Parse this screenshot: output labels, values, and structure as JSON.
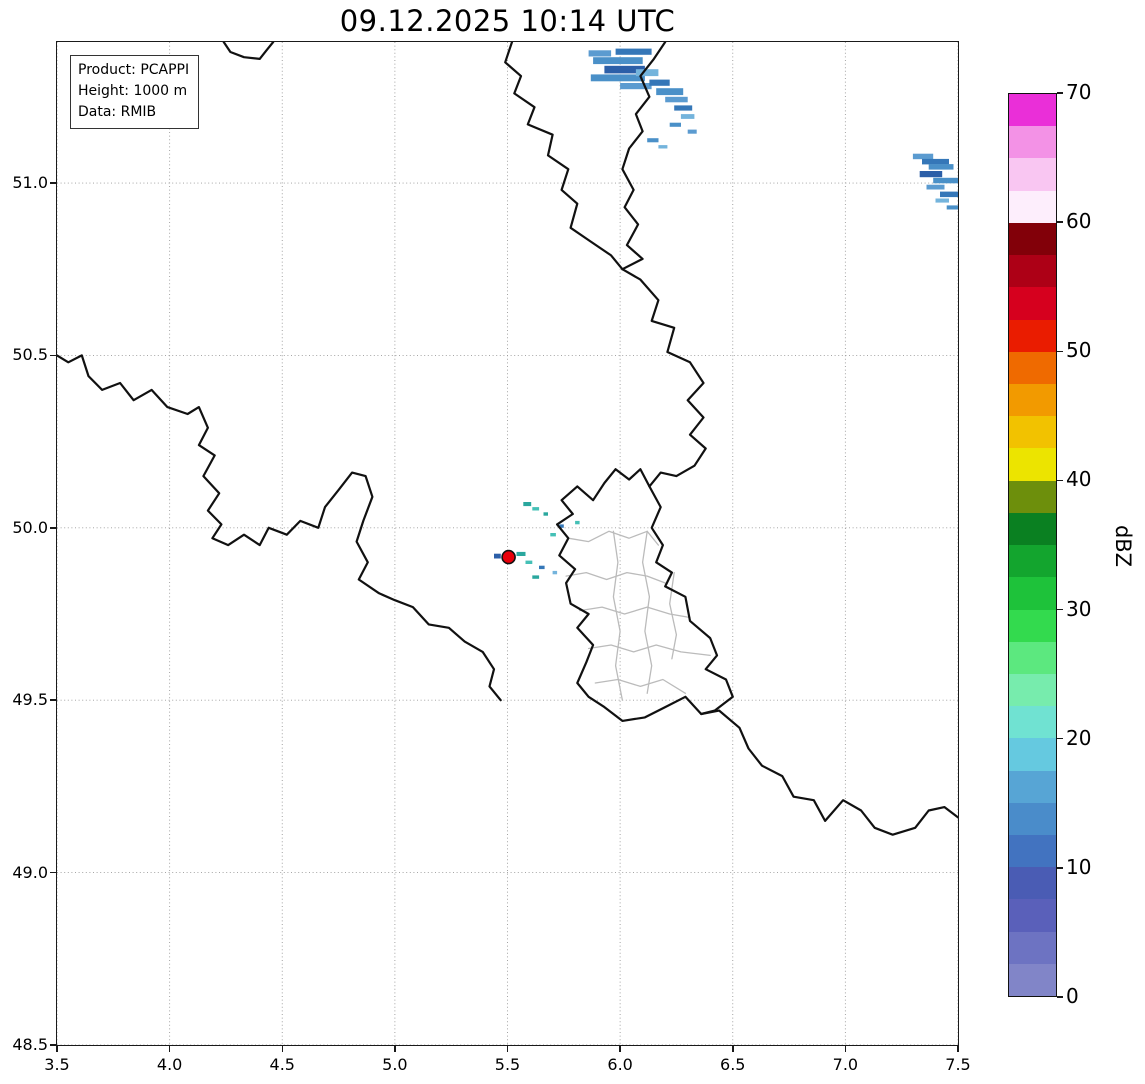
{
  "title": "09.12.2025 10:14 UTC",
  "info_box": {
    "lines": [
      "Product: PCAPPI",
      "Height: 1000 m",
      "Data: RMIB"
    ]
  },
  "axes": {
    "x_range": [
      3.5,
      7.5
    ],
    "y_range": [
      48.5,
      51.409
    ],
    "x_ticks": [
      "3.5",
      "4.0",
      "4.5",
      "5.0",
      "5.5",
      "6.0",
      "6.5",
      "7.0",
      "7.5"
    ],
    "y_ticks": [
      "48.5",
      "49.0",
      "49.5",
      "50.0",
      "50.5",
      "51.0"
    ],
    "grid_color": "#9a9a9a"
  },
  "colorbar": {
    "label": "dBZ",
    "min": 0,
    "max": 70,
    "tick_values": [
      0,
      10,
      20,
      30,
      40,
      50,
      60,
      70
    ],
    "colors_bottom_to_top": [
      "#8185c8",
      "#6d73c2",
      "#5a60ba",
      "#4a5cb4",
      "#4273c0",
      "#4a8cca",
      "#57a5d5",
      "#65c9e0",
      "#70e2d2",
      "#77ecad",
      "#5ce87f",
      "#33da4e",
      "#1ec23a",
      "#13a52e",
      "#0a8021",
      "#6d8f0c",
      "#ece400",
      "#f2c200",
      "#f29a00",
      "#ef6a00",
      "#ea1c00",
      "#d6001e",
      "#ad0016",
      "#820009",
      "#fdeefc",
      "#f9c6f2",
      "#f392e6",
      "#ea2fd8"
    ]
  },
  "radar_site": {
    "lon": 5.505,
    "lat": 49.915,
    "fill": "#e8000a",
    "edge": "#111111"
  },
  "map": {
    "border_color": "#111111",
    "region_border_color": "#bbbbbb",
    "national_borders": [
      [
        [
          4.24,
          51.409
        ],
        [
          4.27,
          51.38
        ],
        [
          4.33,
          51.365
        ],
        [
          4.4,
          51.36
        ],
        [
          4.43,
          51.385
        ],
        [
          4.46,
          51.409
        ]
      ],
      [
        [
          5.52,
          51.409
        ],
        [
          5.49,
          51.35
        ],
        [
          5.56,
          51.31
        ],
        [
          5.53,
          51.26
        ],
        [
          5.62,
          51.22
        ],
        [
          5.59,
          51.17
        ],
        [
          5.7,
          51.14
        ],
        [
          5.68,
          51.08
        ],
        [
          5.77,
          51.04
        ],
        [
          5.74,
          50.98
        ],
        [
          5.81,
          50.94
        ],
        [
          5.78,
          50.87
        ],
        [
          5.87,
          50.83
        ],
        [
          5.96,
          50.79
        ],
        [
          6.01,
          50.75
        ]
      ],
      [
        [
          6.2,
          51.409
        ],
        [
          6.15,
          51.36
        ],
        [
          6.09,
          51.31
        ],
        [
          6.13,
          51.25
        ],
        [
          6.07,
          51.2
        ],
        [
          6.1,
          51.15
        ],
        [
          6.04,
          51.1
        ],
        [
          6.01,
          51.04
        ],
        [
          6.06,
          50.98
        ],
        [
          6.02,
          50.93
        ],
        [
          6.08,
          50.88
        ],
        [
          6.03,
          50.82
        ],
        [
          6.1,
          50.78
        ],
        [
          6.01,
          50.75
        ]
      ],
      [
        [
          6.01,
          50.75
        ],
        [
          6.09,
          50.72
        ],
        [
          6.17,
          50.66
        ],
        [
          6.14,
          50.6
        ],
        [
          6.24,
          50.58
        ],
        [
          6.21,
          50.51
        ],
        [
          6.31,
          50.48
        ],
        [
          6.37,
          50.42
        ],
        [
          6.3,
          50.37
        ],
        [
          6.37,
          50.32
        ],
        [
          6.31,
          50.27
        ],
        [
          6.38,
          50.23
        ],
        [
          6.33,
          50.18
        ],
        [
          6.25,
          50.15
        ],
        [
          6.18,
          50.16
        ],
        [
          6.13,
          50.12
        ]
      ],
      [
        [
          6.13,
          50.12
        ],
        [
          6.18,
          50.06
        ],
        [
          6.14,
          50.0
        ],
        [
          6.19,
          49.95
        ],
        [
          6.16,
          49.9
        ],
        [
          6.23,
          49.87
        ],
        [
          6.2,
          49.83
        ],
        [
          6.29,
          49.8
        ],
        [
          6.31,
          49.73
        ],
        [
          6.4,
          49.68
        ],
        [
          6.43,
          49.63
        ],
        [
          6.38,
          49.59
        ],
        [
          6.47,
          49.56
        ],
        [
          6.5,
          49.51
        ],
        [
          6.42,
          49.47
        ],
        [
          6.36,
          49.46
        ],
        [
          6.29,
          49.51
        ],
        [
          6.2,
          49.48
        ],
        [
          6.11,
          49.45
        ],
        [
          6.01,
          49.44
        ],
        [
          5.93,
          49.48
        ],
        [
          5.86,
          49.51
        ],
        [
          5.81,
          49.55
        ],
        [
          5.85,
          49.61
        ],
        [
          5.88,
          49.66
        ],
        [
          5.81,
          49.71
        ],
        [
          5.86,
          49.75
        ],
        [
          5.78,
          49.78
        ],
        [
          5.76,
          49.84
        ],
        [
          5.8,
          49.88
        ],
        [
          5.73,
          49.92
        ],
        [
          5.77,
          49.97
        ],
        [
          5.72,
          50.01
        ],
        [
          5.79,
          50.04
        ],
        [
          5.74,
          50.08
        ],
        [
          5.81,
          50.12
        ],
        [
          5.88,
          50.08
        ],
        [
          5.93,
          50.13
        ],
        [
          5.98,
          50.17
        ],
        [
          6.04,
          50.14
        ],
        [
          6.09,
          50.17
        ],
        [
          6.13,
          50.12
        ]
      ],
      [
        [
          3.5,
          50.5
        ],
        [
          3.55,
          50.48
        ],
        [
          3.61,
          50.5
        ],
        [
          3.64,
          50.44
        ],
        [
          3.7,
          50.4
        ],
        [
          3.78,
          50.42
        ],
        [
          3.84,
          50.37
        ],
        [
          3.92,
          50.4
        ],
        [
          3.99,
          50.35
        ],
        [
          4.08,
          50.33
        ],
        [
          4.13,
          50.35
        ],
        [
          4.17,
          50.29
        ],
        [
          4.13,
          50.24
        ],
        [
          4.2,
          50.21
        ],
        [
          4.15,
          50.15
        ],
        [
          4.22,
          50.1
        ],
        [
          4.17,
          50.05
        ],
        [
          4.23,
          50.01
        ],
        [
          4.19,
          49.97
        ],
        [
          4.26,
          49.95
        ],
        [
          4.33,
          49.98
        ],
        [
          4.4,
          49.95
        ],
        [
          4.44,
          50.0
        ],
        [
          4.52,
          49.98
        ],
        [
          4.58,
          50.02
        ],
        [
          4.66,
          50.0
        ],
        [
          4.69,
          50.06
        ],
        [
          4.75,
          50.11
        ],
        [
          4.81,
          50.16
        ],
        [
          4.87,
          50.15
        ],
        [
          4.9,
          50.09
        ],
        [
          4.86,
          50.02
        ],
        [
          4.83,
          49.96
        ],
        [
          4.88,
          49.9
        ],
        [
          4.84,
          49.85
        ],
        [
          4.93,
          49.81
        ],
        [
          5.0,
          49.79
        ],
        [
          5.08,
          49.77
        ],
        [
          5.15,
          49.72
        ],
        [
          5.24,
          49.71
        ],
        [
          5.31,
          49.67
        ],
        [
          5.39,
          49.64
        ],
        [
          5.44,
          49.59
        ],
        [
          5.42,
          49.54
        ],
        [
          5.47,
          49.5
        ]
      ],
      [
        [
          6.36,
          49.46
        ],
        [
          6.44,
          49.47
        ],
        [
          6.53,
          49.42
        ],
        [
          6.57,
          49.36
        ],
        [
          6.63,
          49.31
        ],
        [
          6.72,
          49.28
        ],
        [
          6.77,
          49.22
        ],
        [
          6.86,
          49.21
        ],
        [
          6.91,
          49.15
        ],
        [
          6.99,
          49.21
        ],
        [
          7.07,
          49.18
        ],
        [
          7.13,
          49.13
        ],
        [
          7.21,
          49.11
        ],
        [
          7.31,
          49.13
        ],
        [
          7.37,
          49.18
        ],
        [
          7.44,
          49.19
        ],
        [
          7.5,
          49.16
        ]
      ]
    ],
    "region_borders": [
      [
        [
          5.77,
          49.97
        ],
        [
          5.86,
          49.96
        ],
        [
          5.95,
          49.99
        ],
        [
          6.04,
          49.97
        ],
        [
          6.12,
          49.99
        ],
        [
          6.17,
          49.95
        ]
      ],
      [
        [
          5.76,
          49.86
        ],
        [
          5.85,
          49.87
        ],
        [
          5.94,
          49.85
        ],
        [
          6.03,
          49.87
        ],
        [
          6.12,
          49.86
        ],
        [
          6.2,
          49.84
        ]
      ],
      [
        [
          5.82,
          49.76
        ],
        [
          5.92,
          49.77
        ],
        [
          6.02,
          49.75
        ],
        [
          6.12,
          49.77
        ],
        [
          6.22,
          49.75
        ],
        [
          6.31,
          49.74
        ]
      ],
      [
        [
          5.86,
          49.65
        ],
        [
          5.96,
          49.66
        ],
        [
          6.06,
          49.64
        ],
        [
          6.16,
          49.66
        ],
        [
          6.27,
          49.64
        ],
        [
          6.4,
          49.63
        ]
      ],
      [
        [
          5.89,
          49.55
        ],
        [
          5.99,
          49.56
        ],
        [
          6.09,
          49.54
        ],
        [
          6.19,
          49.56
        ],
        [
          6.29,
          49.52
        ]
      ],
      [
        [
          5.97,
          49.99
        ],
        [
          5.99,
          49.9
        ],
        [
          5.97,
          49.8
        ],
        [
          6.0,
          49.7
        ],
        [
          5.98,
          49.6
        ],
        [
          6.01,
          49.5
        ]
      ],
      [
        [
          6.12,
          49.99
        ],
        [
          6.1,
          49.9
        ],
        [
          6.13,
          49.8
        ],
        [
          6.11,
          49.7
        ],
        [
          6.14,
          49.6
        ],
        [
          6.12,
          49.52
        ]
      ],
      [
        [
          6.24,
          49.87
        ],
        [
          6.22,
          49.78
        ],
        [
          6.25,
          49.69
        ],
        [
          6.23,
          49.62
        ]
      ]
    ]
  },
  "echoes": [
    {
      "lon": 5.86,
      "lat": 51.385,
      "w": 0.1,
      "h": 0.018,
      "color": "#5b9bd0"
    },
    {
      "lon": 5.98,
      "lat": 51.39,
      "w": 0.16,
      "h": 0.018,
      "color": "#3577b8"
    },
    {
      "lon": 5.88,
      "lat": 51.365,
      "w": 0.22,
      "h": 0.02,
      "color": "#4a90c8"
    },
    {
      "lon": 5.93,
      "lat": 51.34,
      "w": 0.18,
      "h": 0.022,
      "color": "#2c5fa8"
    },
    {
      "lon": 5.87,
      "lat": 51.315,
      "w": 0.24,
      "h": 0.02,
      "color": "#4a90c8"
    },
    {
      "lon": 6.07,
      "lat": 51.33,
      "w": 0.1,
      "h": 0.02,
      "color": "#74b4dc"
    },
    {
      "lon": 6.0,
      "lat": 51.29,
      "w": 0.14,
      "h": 0.018,
      "color": "#5b9bd0"
    },
    {
      "lon": 6.13,
      "lat": 51.3,
      "w": 0.09,
      "h": 0.018,
      "color": "#3577b8"
    },
    {
      "lon": 6.16,
      "lat": 51.275,
      "w": 0.12,
      "h": 0.02,
      "color": "#4a90c8"
    },
    {
      "lon": 6.2,
      "lat": 51.25,
      "w": 0.1,
      "h": 0.016,
      "color": "#5b9bd0"
    },
    {
      "lon": 6.24,
      "lat": 51.225,
      "w": 0.08,
      "h": 0.015,
      "color": "#3577b8"
    },
    {
      "lon": 6.27,
      "lat": 51.2,
      "w": 0.06,
      "h": 0.014,
      "color": "#74b4dc"
    },
    {
      "lon": 6.22,
      "lat": 51.175,
      "w": 0.05,
      "h": 0.012,
      "color": "#4a90c8"
    },
    {
      "lon": 6.3,
      "lat": 51.155,
      "w": 0.04,
      "h": 0.012,
      "color": "#5b9bd0"
    },
    {
      "lon": 6.12,
      "lat": 51.13,
      "w": 0.05,
      "h": 0.012,
      "color": "#4a90c8"
    },
    {
      "lon": 6.17,
      "lat": 51.11,
      "w": 0.04,
      "h": 0.01,
      "color": "#74b4dc"
    },
    {
      "lon": 7.3,
      "lat": 51.085,
      "w": 0.09,
      "h": 0.016,
      "color": "#5b9bd0"
    },
    {
      "lon": 7.34,
      "lat": 51.07,
      "w": 0.12,
      "h": 0.016,
      "color": "#3577b8"
    },
    {
      "lon": 7.37,
      "lat": 51.055,
      "w": 0.11,
      "h": 0.016,
      "color": "#4a90c8"
    },
    {
      "lon": 7.33,
      "lat": 51.035,
      "w": 0.1,
      "h": 0.018,
      "color": "#2c5fa8"
    },
    {
      "lon": 7.39,
      "lat": 51.015,
      "w": 0.11,
      "h": 0.016,
      "color": "#4a90c8"
    },
    {
      "lon": 7.36,
      "lat": 50.995,
      "w": 0.08,
      "h": 0.014,
      "color": "#5b9bd0"
    },
    {
      "lon": 7.42,
      "lat": 50.975,
      "w": 0.08,
      "h": 0.016,
      "color": "#3577b8"
    },
    {
      "lon": 7.4,
      "lat": 50.955,
      "w": 0.06,
      "h": 0.012,
      "color": "#74b4dc"
    },
    {
      "lon": 7.45,
      "lat": 50.935,
      "w": 0.05,
      "h": 0.012,
      "color": "#4a90c8"
    },
    {
      "lon": 5.57,
      "lat": 50.075,
      "w": 0.035,
      "h": 0.012,
      "color": "#2aa79e"
    },
    {
      "lon": 5.61,
      "lat": 50.06,
      "w": 0.03,
      "h": 0.01,
      "color": "#45c0b6"
    },
    {
      "lon": 5.66,
      "lat": 50.045,
      "w": 0.02,
      "h": 0.01,
      "color": "#2aa79e"
    },
    {
      "lon": 5.8,
      "lat": 50.02,
      "w": 0.02,
      "h": 0.01,
      "color": "#45c0b6"
    },
    {
      "lon": 5.73,
      "lat": 50.01,
      "w": 0.02,
      "h": 0.01,
      "color": "#3577b8"
    },
    {
      "lon": 5.69,
      "lat": 49.985,
      "w": 0.025,
      "h": 0.01,
      "color": "#45c0b6"
    },
    {
      "lon": 5.44,
      "lat": 49.925,
      "w": 0.03,
      "h": 0.014,
      "color": "#2c5fa8"
    },
    {
      "lon": 5.54,
      "lat": 49.93,
      "w": 0.04,
      "h": 0.012,
      "color": "#2aa79e"
    },
    {
      "lon": 5.58,
      "lat": 49.905,
      "w": 0.03,
      "h": 0.01,
      "color": "#45c0b6"
    },
    {
      "lon": 5.64,
      "lat": 49.89,
      "w": 0.025,
      "h": 0.01,
      "color": "#3577b8"
    },
    {
      "lon": 5.7,
      "lat": 49.875,
      "w": 0.02,
      "h": 0.01,
      "color": "#74b4dc"
    },
    {
      "lon": 5.61,
      "lat": 49.862,
      "w": 0.03,
      "h": 0.01,
      "color": "#2aa79e"
    }
  ],
  "chart_data": {
    "type": "heatmap",
    "title": "09.12.2025 10:14 UTC",
    "xlabel": "",
    "ylabel": "",
    "x_range": [
      3.5,
      7.5
    ],
    "y_range": [
      48.5,
      51.41
    ],
    "grid": true,
    "colorbar_label": "dBZ",
    "colorbar_range": [
      0,
      70
    ],
    "colorbar_tick_labels": [
      "0",
      "10",
      "20",
      "30",
      "40",
      "50",
      "60",
      "70"
    ],
    "notes": "PCAPPI radar reflectivity at 1000 m (RMIB) over Belgium/Luxembourg; radar site marked in red at approx (5.5, 49.92); weak 5-15 dBZ echoes near (6.0, 51.3), (7.4, 51.0) and around the radar site"
  }
}
